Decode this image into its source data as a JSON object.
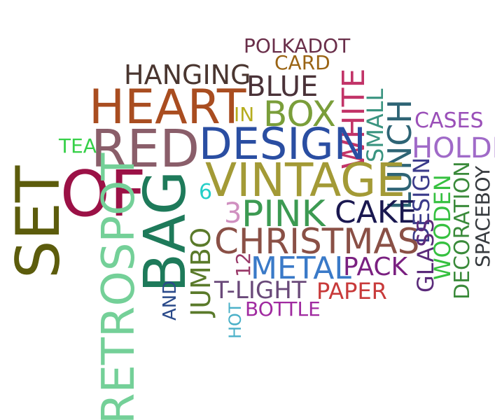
{
  "words": [
    {
      "key": "set",
      "text": "SET",
      "color": "#5c5c0c"
    },
    {
      "key": "of",
      "text": "OF",
      "color": "#9b1146"
    },
    {
      "key": "red",
      "text": "RED",
      "color": "#8a5e6a"
    },
    {
      "key": "heart",
      "text": "HEART",
      "color": "#a94d20"
    },
    {
      "key": "hanging",
      "text": "HANGING",
      "color": "#4a3630"
    },
    {
      "key": "polkadot",
      "text": "POLKADOT",
      "color": "#6a2f4a"
    },
    {
      "key": "card",
      "text": "CARD",
      "color": "#9a6414"
    },
    {
      "key": "blue",
      "text": "BLUE",
      "color": "#4a3238"
    },
    {
      "key": "in",
      "text": "IN",
      "color": "#b6ad1e"
    },
    {
      "key": "box",
      "text": "BOX",
      "color": "#7a9e3a"
    },
    {
      "key": "white",
      "text": "WHITE",
      "color": "#c23468"
    },
    {
      "key": "small",
      "text": "SMALL",
      "color": "#3a9480"
    },
    {
      "key": "lunch",
      "text": "LUNCH",
      "color": "#2e6475"
    },
    {
      "key": "cases",
      "text": "CASES",
      "color": "#9a4fb8"
    },
    {
      "key": "holder",
      "text": "HOLDER",
      "color": "#a06ac8"
    },
    {
      "key": "tea",
      "text": "TEA",
      "color": "#36d048"
    },
    {
      "key": "design",
      "text": "DESIGN",
      "color": "#2a4ea2"
    },
    {
      "key": "vintage",
      "text": "VINTAGE",
      "color": "#a39a36"
    },
    {
      "key": "bag",
      "text": "BAG",
      "color": "#1e7a5a"
    },
    {
      "key": "retrospot",
      "text": "RETROSPOT",
      "color": "#74d098"
    },
    {
      "key": "six",
      "text": "6",
      "color": "#24cfc8"
    },
    {
      "key": "three",
      "text": "3",
      "color": "#d090c0"
    },
    {
      "key": "pink",
      "text": "PINK",
      "color": "#3c9a52"
    },
    {
      "key": "cake",
      "text": "CAKE",
      "color": "#1a1850"
    },
    {
      "key": "design2",
      "text": "DESIGN",
      "color": "#3a3a8a"
    },
    {
      "key": "christmas",
      "text": "CHRISTMAS",
      "color": "#8a5046"
    },
    {
      "key": "jumbo",
      "text": "JUMBO",
      "color": "#5a7a2a"
    },
    {
      "key": "twelve",
      "text": "12",
      "color": "#9a3a6a"
    },
    {
      "key": "metal",
      "text": "METAL",
      "color": "#3a7ac8"
    },
    {
      "key": "pack",
      "text": "PACK",
      "color": "#7a2080"
    },
    {
      "key": "glass",
      "text": "GLASS",
      "color": "#5a2a7a"
    },
    {
      "key": "wooden",
      "text": "WOODEN",
      "color": "#36c040"
    },
    {
      "key": "decoration",
      "text": "DECORATION",
      "color": "#3a8a3a"
    },
    {
      "key": "spaceboy",
      "text": "SPACEBOY",
      "color": "#363a3e"
    },
    {
      "key": "and",
      "text": "AND",
      "color": "#2a4a8a"
    },
    {
      "key": "tlight",
      "text": "T-LIGHT",
      "color": "#6a4a7a"
    },
    {
      "key": "paper",
      "text": "PAPER",
      "color": "#c83a3a"
    },
    {
      "key": "hot",
      "text": "HOT",
      "color": "#4ab0c8"
    },
    {
      "key": "bottle",
      "text": "BOTTLE",
      "color": "#a02aa0"
    }
  ]
}
